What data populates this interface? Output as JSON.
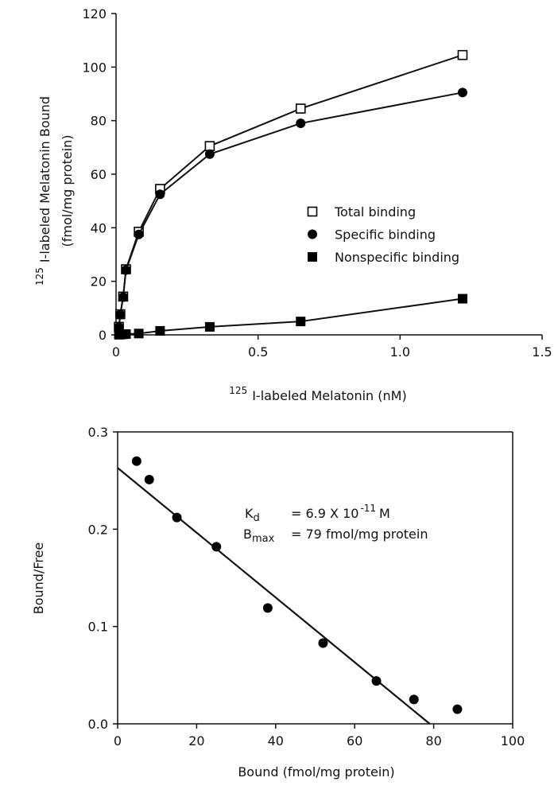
{
  "chart_data": [
    {
      "type": "line",
      "xlabel_sup": "125",
      "xlabel": "I-labeled Melatonin (nM)",
      "ylabel_sup": "125",
      "ylabel": "I-labeled Melatonin Bound",
      "ylabel_line2": "(fmol/mg protein)",
      "x": [
        0.01,
        0.015,
        0.025,
        0.035,
        0.08,
        0.155,
        0.33,
        0.65,
        1.22
      ],
      "series": [
        {
          "name": "Total binding",
          "color": "#000000",
          "marker": "open-square",
          "values": [
            3,
            7.7,
            14.3,
            24.5,
            38.5,
            54.5,
            70.5,
            84.5,
            104.5
          ]
        },
        {
          "name": "Specific binding",
          "color": "#000000",
          "marker": "circle",
          "values": [
            2.9,
            7.6,
            14.1,
            24.2,
            37.5,
            52.5,
            67.5,
            79,
            90.5
          ]
        },
        {
          "name": "Nonspecific binding",
          "color": "#000000",
          "marker": "square",
          "values": [
            0.1,
            0.1,
            0.2,
            0.3,
            0.5,
            1.5,
            3,
            5,
            13.5
          ]
        }
      ],
      "xlim": [
        0,
        1.5
      ],
      "xticks": [
        0,
        0.5,
        {
          "value": 1,
          "label": "1.0"
        },
        1.5
      ],
      "ylim": [
        0,
        120
      ],
      "yticks": [
        0,
        20,
        40,
        60,
        80,
        100,
        120
      ],
      "legend": "center-right"
    },
    {
      "type": "scatter",
      "xlabel": "Bound (fmol/mg protein)",
      "ylabel": "Bound/Free",
      "x": [
        4.8,
        8,
        15,
        25,
        38,
        52,
        65.5,
        75,
        86
      ],
      "values": [
        0.27,
        0.251,
        0.212,
        0.182,
        0.119,
        0.083,
        0.044,
        0.025,
        0.015
      ],
      "color": "#000000",
      "fit": {
        "x": [
          0,
          79
        ],
        "y": [
          0.263,
          0
        ]
      },
      "annotations": {
        "kd_symbol": "K",
        "kd_sub": "d",
        "kd_text": "= 6.9 X 10",
        "kd_sup": "-11",
        "kd_unit": "M",
        "bmax_symbol": "B",
        "bmax_sub": "max",
        "bmax_text": "= 79 fmol/mg protein"
      },
      "xlim": [
        0,
        100
      ],
      "xticks": [
        0,
        20,
        40,
        60,
        80,
        100
      ],
      "ylim": [
        0,
        0.3
      ],
      "yticks": [
        {
          "value": 0,
          "label": "0.0"
        },
        0.1,
        0.2,
        0.3
      ]
    }
  ]
}
